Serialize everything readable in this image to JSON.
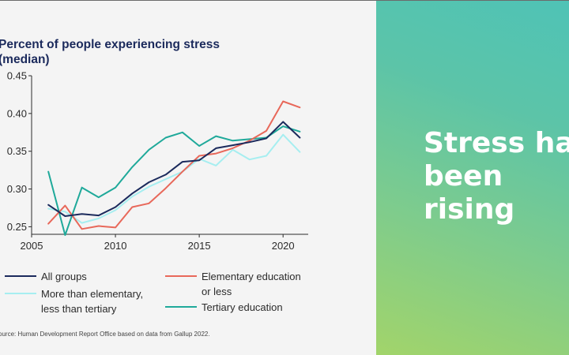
{
  "chart_data": {
    "type": "line",
    "title": "Percent of people experiencing stress\n(median)",
    "xlabel": "",
    "ylabel": "",
    "xlim": [
      2005,
      2021.5
    ],
    "ylim": [
      0.24,
      0.45
    ],
    "xticks": [
      2005,
      2010,
      2015,
      2020
    ],
    "yticks": [
      0.25,
      0.3,
      0.35,
      0.4,
      0.45
    ],
    "ytick_labels": [
      "0.25",
      "0.30",
      "0.35",
      "0.40",
      "0.45"
    ],
    "x": [
      2006,
      2007,
      2008,
      2009,
      2010,
      2011,
      2012,
      2013,
      2014,
      2015,
      2016,
      2017,
      2018,
      2019,
      2020,
      2021
    ],
    "series": [
      {
        "name": "All groups",
        "color": "#1b2a5c",
        "values": [
          0.279,
          0.264,
          0.267,
          0.265,
          0.276,
          0.294,
          0.309,
          0.319,
          0.336,
          0.338,
          0.354,
          0.358,
          0.362,
          0.367,
          0.389,
          0.368
        ]
      },
      {
        "name": "Elementary education or less",
        "color": "#e8685a",
        "values": [
          0.254,
          0.278,
          0.247,
          0.251,
          0.249,
          0.276,
          0.281,
          0.301,
          0.323,
          0.344,
          0.347,
          0.354,
          0.364,
          0.377,
          0.416,
          0.408
        ]
      },
      {
        "name": "More than elementary, less than tertiary",
        "color": "#a6eef0",
        "values": [
          0.274,
          0.27,
          0.255,
          0.261,
          0.272,
          0.29,
          0.303,
          0.313,
          0.323,
          0.34,
          0.331,
          0.352,
          0.339,
          0.344,
          0.372,
          0.349
        ]
      },
      {
        "name": "Tertiary education",
        "color": "#1fa99a",
        "values": [
          0.323,
          0.239,
          0.302,
          0.289,
          0.302,
          0.329,
          0.352,
          0.368,
          0.375,
          0.357,
          0.37,
          0.364,
          0.366,
          0.368,
          0.383,
          0.376
        ]
      }
    ],
    "legend": [
      {
        "label": "All groups",
        "color": "#1b2a5c"
      },
      {
        "label": "Elementary education\nor less",
        "color": "#e8685a"
      },
      {
        "label": "More than elementary,\nless than tertiary",
        "color": "#a6eef0"
      },
      {
        "label": "Tertiary education",
        "color": "#1fa99a"
      }
    ],
    "legend_position": "bottom",
    "grid": false
  },
  "source_note": "ource: Human Development Report Office based on data from Gallup 2022.",
  "heading": {
    "line1": "Stress has",
    "line2": "been",
    "line3": "rising"
  },
  "colors": {
    "axis": "#2b2b2b",
    "title": "#1b2a5c",
    "heading": "#ffffff",
    "panel_start": "#4fc3b6",
    "panel_end": "#a2d46a"
  }
}
